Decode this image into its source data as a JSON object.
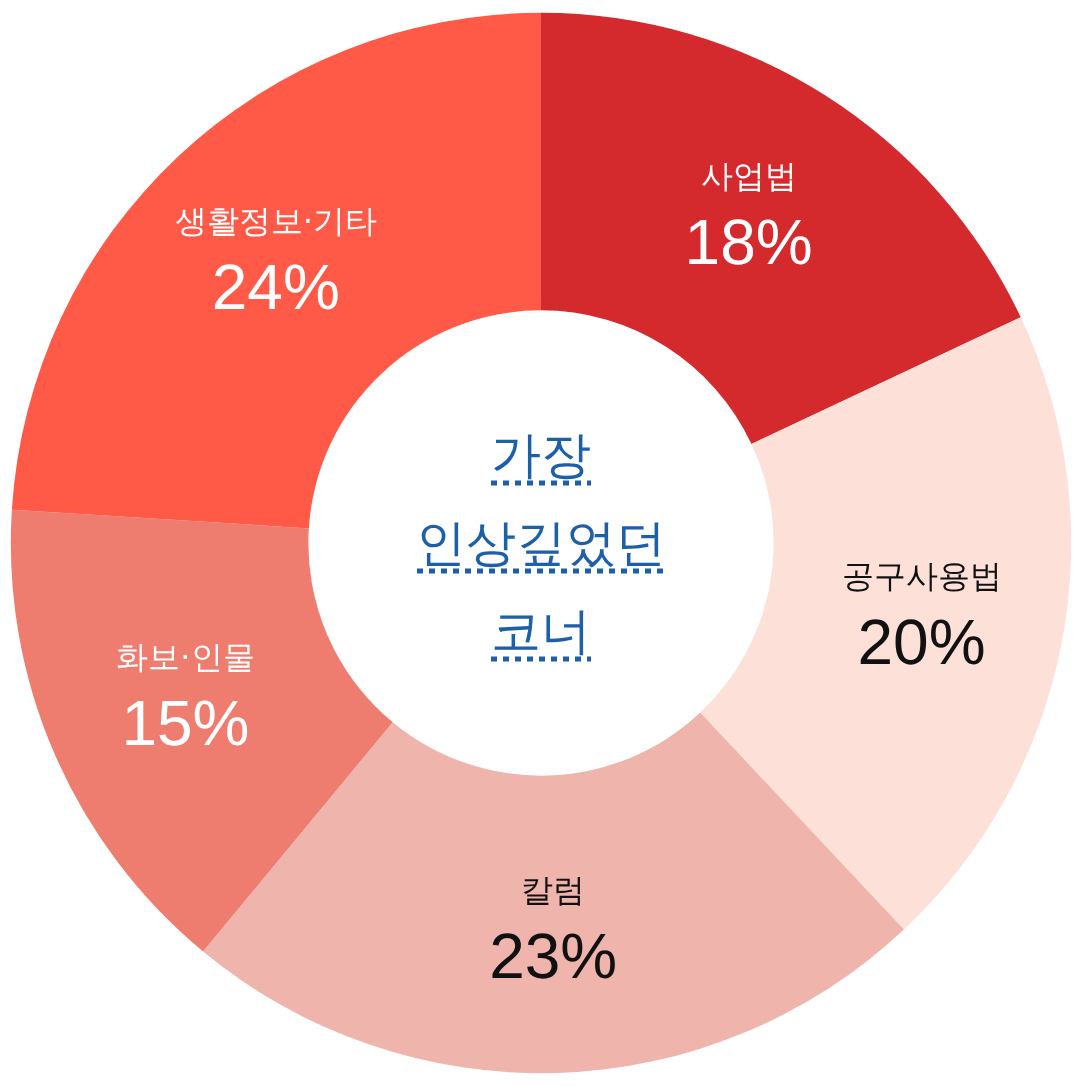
{
  "chart_data": {
    "type": "donut",
    "title": "가장 인상깊었던 코너",
    "categories": [
      "사업법",
      "공구사용법",
      "칼럼",
      "화보·인물",
      "생활정보·기타"
    ],
    "values": [
      18,
      20,
      23,
      15,
      24
    ],
    "value_labels": [
      "18%",
      "20%",
      "23%",
      "15%",
      "24%"
    ],
    "colors": [
      "#d42a2e",
      "#fde0d8",
      "#efb5ad",
      "#ee7d6f",
      "#ff5a48"
    ],
    "legend": false
  }
}
